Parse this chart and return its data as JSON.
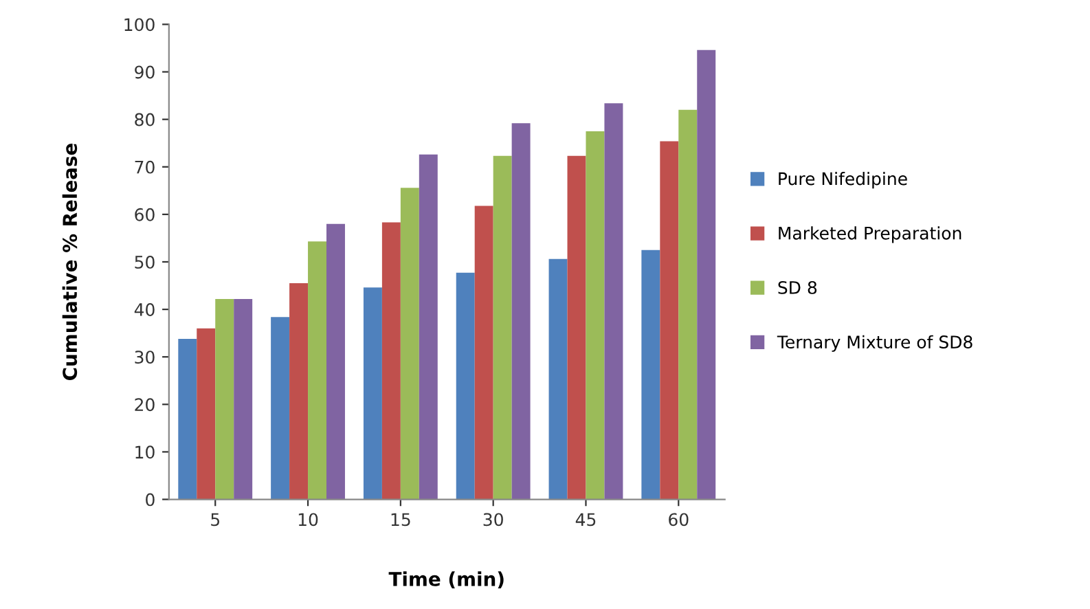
{
  "chart_data": {
    "type": "bar",
    "xlabel": "Time (min)",
    "ylabel": "Cumulative % Release",
    "categories": [
      "5",
      "10",
      "15",
      "30",
      "45",
      "60"
    ],
    "series": [
      {
        "name": "Pure Nifedipine",
        "color": "#4f81bd",
        "values": [
          33.8,
          38.4,
          44.6,
          47.7,
          50.6,
          52.5
        ]
      },
      {
        "name": "Marketed Preparation",
        "color": "#c0504d",
        "values": [
          36,
          45.5,
          58.3,
          61.8,
          72.3,
          75.4
        ]
      },
      {
        "name": "SD 8",
        "color": "#9bbb59",
        "values": [
          42.2,
          54.3,
          65.6,
          72.3,
          77.5,
          82
        ]
      },
      {
        "name": "Ternary Mixture of SD8",
        "color": "#8064a2",
        "values": [
          42.2,
          58,
          72.6,
          79.2,
          83.4,
          94.6
        ]
      }
    ],
    "ylim": [
      0,
      100
    ],
    "yticks": [
      0,
      10,
      20,
      30,
      40,
      50,
      60,
      70,
      80,
      90,
      100
    ],
    "grid": false,
    "legend": "right"
  }
}
